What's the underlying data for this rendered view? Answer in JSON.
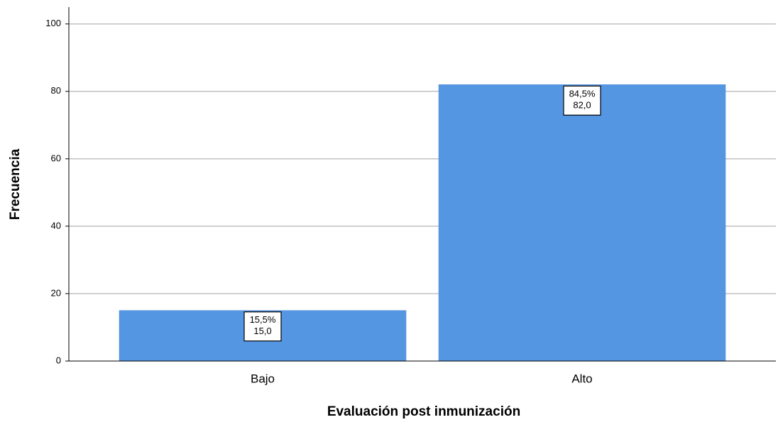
{
  "chart_data": {
    "type": "bar",
    "x_label": "Evaluación post inmunización",
    "y_label": "Frecuencia",
    "categories": [
      "Bajo",
      "Alto"
    ],
    "values": [
      15,
      82
    ],
    "value_labels": [
      "15,0",
      "82,0"
    ],
    "percent": [
      15.5,
      84.5
    ],
    "percent_labels": [
      "15,5%",
      "84,5%"
    ],
    "color": "#5596e3",
    "ylim": [
      0,
      105
    ],
    "yticks": [
      0,
      20,
      40,
      60,
      80,
      100
    ],
    "grid": true
  }
}
